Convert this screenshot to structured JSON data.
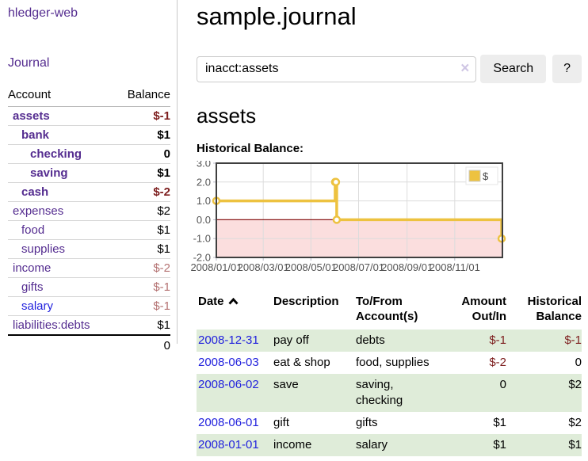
{
  "sidebar": {
    "brand": "hledger-web",
    "journal_link": "Journal",
    "accounts": {
      "col_account": "Account",
      "col_balance": "Balance",
      "rows": [
        {
          "name": "assets",
          "indent": 0,
          "bold": true,
          "balance": "$-1",
          "balance_tone": "neg-strong"
        },
        {
          "name": "bank",
          "indent": 1,
          "bold": true,
          "balance": "$1",
          "balance_tone": "pos"
        },
        {
          "name": "checking",
          "indent": 2,
          "bold": true,
          "balance": "0",
          "balance_tone": "pos"
        },
        {
          "name": "saving",
          "indent": 2,
          "bold": true,
          "balance": "$1",
          "balance_tone": "pos"
        },
        {
          "name": "cash",
          "indent": 1,
          "bold": true,
          "balance": "$-2",
          "balance_tone": "neg-strong"
        },
        {
          "name": "expenses",
          "indent": 0,
          "bold": false,
          "balance": "$2",
          "balance_tone": "pos"
        },
        {
          "name": "food",
          "indent": 1,
          "bold": false,
          "balance": "$1",
          "balance_tone": "pos"
        },
        {
          "name": "supplies",
          "indent": 1,
          "bold": false,
          "balance": "$1",
          "balance_tone": "pos"
        },
        {
          "name": "income",
          "indent": 0,
          "bold": false,
          "balance": "$-2",
          "balance_tone": "neg-soft"
        },
        {
          "name": "gifts",
          "indent": 1,
          "bold": false,
          "balance": "$-1",
          "balance_tone": "neg-soft"
        },
        {
          "name": "salary",
          "indent": 1,
          "bold": false,
          "balance": "$-1",
          "balance_tone": "neg-soft",
          "link_tone": "blue"
        },
        {
          "name": "liabilities:debts",
          "indent": 0,
          "bold": false,
          "balance": "$1",
          "balance_tone": "pos"
        }
      ],
      "total": "0"
    }
  },
  "main": {
    "title": "sample.journal",
    "search": {
      "value": "inacct:assets",
      "clear_icon": "×",
      "search_button": "Search",
      "help_button": "?"
    },
    "account_heading": "assets",
    "chart_title": "Historical Balance:",
    "register": {
      "headers": {
        "date": "Date",
        "description": "Description",
        "accounts": "To/From Account(s)",
        "amount": "Amount Out/In",
        "balance": "Historical Balance"
      },
      "sort": {
        "column": "date",
        "direction": "ascending"
      },
      "rows": [
        {
          "date": "2008-12-31",
          "description": "pay off",
          "accounts": "debts",
          "amount": "$-1",
          "balance": "$-1"
        },
        {
          "date": "2008-06-03",
          "description": "eat & shop",
          "accounts": "food, supplies",
          "amount": "$-2",
          "balance": "0"
        },
        {
          "date": "2008-06-02",
          "description": "save",
          "accounts": "saving, checking",
          "amount": "0",
          "balance": "$2"
        },
        {
          "date": "2008-06-01",
          "description": "gift",
          "accounts": "gifts",
          "amount": "$1",
          "balance": "$2"
        },
        {
          "date": "2008-01-01",
          "description": "income",
          "accounts": "salary",
          "amount": "$1",
          "balance": "$1"
        }
      ]
    }
  },
  "colors": {
    "link_purple": "#552d90",
    "link_blue": "#2222dd",
    "neg_strong": "#7d1e1e",
    "neg_soft": "#b47272",
    "row_green": "#dfecd9",
    "divider": "#c9c9c9"
  },
  "chart_data": {
    "type": "line",
    "step": true,
    "title": "Historical Balance",
    "series": [
      {
        "name": "$",
        "color": "#edc240",
        "points": [
          [
            "2008-01-01",
            1
          ],
          [
            "2008-06-01",
            2
          ],
          [
            "2008-06-02",
            2
          ],
          [
            "2008-06-03",
            0
          ],
          [
            "2008-12-31",
            -1
          ]
        ]
      }
    ],
    "x_ticks": [
      [
        "2008-01-01",
        "2008/01/01"
      ],
      [
        "2008-03-01",
        "2008/03/01"
      ],
      [
        "2008-05-01",
        "2008/05/01"
      ],
      [
        "2008-07-01",
        "2008/07/01"
      ],
      [
        "2008-09-01",
        "2008/09/01"
      ],
      [
        "2008-11-01",
        "2008/11/01"
      ]
    ],
    "y_ticks": [
      "3.0",
      "2.0",
      "1.0",
      "0.0",
      "-1.0",
      "-2.0"
    ],
    "ylim": [
      -2,
      3
    ],
    "xlim": [
      "2008-01-01",
      "2009-01-01"
    ],
    "legend": {
      "label": "$",
      "position": "top-right"
    },
    "colors": {
      "grid": "#dcdcdc",
      "border": "#3f3f3f",
      "negative_region": "#fbdede",
      "zero_line": "#8b1a1a",
      "axis_label": "#545454",
      "tick": "#b9b9c9"
    }
  }
}
